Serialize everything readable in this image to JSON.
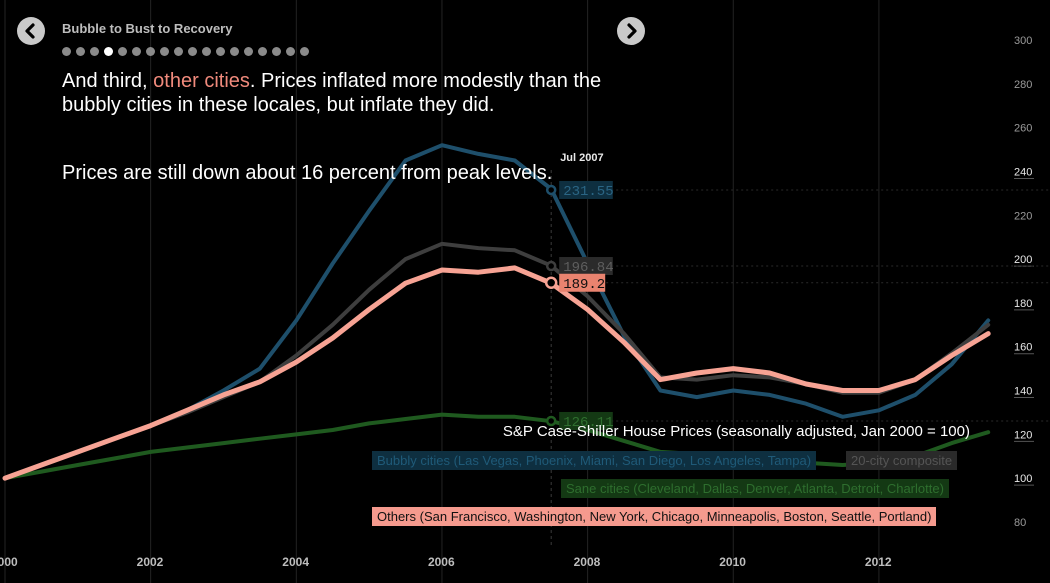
{
  "header": {
    "step_title": "Bubble to Bust to Recovery",
    "step_count": 18,
    "active_step": 3,
    "narrative_intro": "And third, ",
    "narrative_highlight": "other cities",
    "narrative_rest": ". Prices inflated more modestly than the bubbly cities in these locales, but inflate they did.",
    "narrative_2": "Prices are still down about 16 percent from peak levels."
  },
  "colors": {
    "background": "#000000",
    "bubbly": "#1e4f6b",
    "composite": "#3e3e3e",
    "sane": "#1f5a1f",
    "others": "#f7a394",
    "highlight": "#f08a7c"
  },
  "chart_data": {
    "type": "line",
    "title": "S&P Case-Shiller House Prices (seasonally adjusted, Jan 2000 = 100)",
    "xlim": [
      2000,
      2013.8
    ],
    "ylim": [
      80,
      300
    ],
    "x_ticks": [
      "2000",
      "2002",
      "2004",
      "2006",
      "2008",
      "2010",
      "2012"
    ],
    "y_ticks": [
      80,
      100,
      120,
      140,
      160,
      180,
      200,
      220,
      240,
      260,
      280,
      300
    ],
    "highlighted_y_ticks": [
      100,
      120,
      140,
      160,
      180,
      200,
      240
    ],
    "marker": {
      "x": 2007.5,
      "label": "Jul 2007",
      "values": [
        "231.55",
        "196.84",
        "189.2",
        "126.11"
      ]
    },
    "series": [
      {
        "name": "Bubbly cities (Las Vegas, Phoenix, Miami, San Diego, Los Angeles, Tampa)",
        "x": [
          2000,
          2000.5,
          2001,
          2001.5,
          2002,
          2002.5,
          2003,
          2003.5,
          2004,
          2004.5,
          2005,
          2005.5,
          2006,
          2006.5,
          2007,
          2007.5,
          2008,
          2008.5,
          2009,
          2009.5,
          2010,
          2010.5,
          2011,
          2011.5,
          2012,
          2012.5,
          2013,
          2013.5
        ],
        "y": [
          100,
          106,
          112,
          118,
          124,
          131,
          140,
          150,
          172,
          198,
          222,
          245,
          252,
          248,
          245,
          232,
          198,
          165,
          140,
          137,
          140,
          138,
          134,
          128,
          131,
          138,
          152,
          172
        ]
      },
      {
        "name": "20-city composite",
        "x": [
          2000,
          2000.5,
          2001,
          2001.5,
          2002,
          2002.5,
          2003,
          2003.5,
          2004,
          2004.5,
          2005,
          2005.5,
          2006,
          2006.5,
          2007,
          2007.5,
          2008,
          2008.5,
          2009,
          2009.5,
          2010,
          2010.5,
          2011,
          2011.5,
          2012,
          2012.5,
          2013,
          2013.5
        ],
        "y": [
          100,
          106,
          112,
          118,
          124,
          130,
          137,
          144,
          156,
          170,
          186,
          200,
          207,
          205,
          204,
          197,
          183,
          166,
          146,
          145,
          147,
          146,
          143,
          139,
          139,
          145,
          157,
          170
        ]
      },
      {
        "name": "Sane cities (Cleveland, Dallas, Denver, Atlanta, Detroit, Charlotte)",
        "x": [
          2000,
          2000.5,
          2001,
          2001.5,
          2002,
          2002.5,
          2003,
          2003.5,
          2004,
          2004.5,
          2005,
          2005.5,
          2006,
          2006.5,
          2007,
          2007.5,
          2008,
          2008.5,
          2009,
          2009.5,
          2010,
          2010.5,
          2011,
          2011.5,
          2012,
          2012.5,
          2013,
          2013.5
        ],
        "y": [
          100,
          103,
          106,
          109,
          112,
          114,
          116,
          118,
          120,
          122,
          125,
          127,
          129,
          128,
          128,
          126,
          122,
          117,
          112,
          111,
          111,
          110,
          107,
          106,
          107,
          110,
          116,
          121
        ]
      },
      {
        "name": "Others (San Francisco, Washington, New York, Chicago, Minneapolis, Boston, Seattle, Portland)",
        "x": [
          2000,
          2000.5,
          2001,
          2001.5,
          2002,
          2002.5,
          2003,
          2003.5,
          2004,
          2004.5,
          2005,
          2005.5,
          2006,
          2006.5,
          2007,
          2007.5,
          2008,
          2008.5,
          2009,
          2009.5,
          2010,
          2010.5,
          2011,
          2011.5,
          2012,
          2012.5,
          2013,
          2013.5
        ],
        "y": [
          100,
          106,
          112,
          118,
          124,
          131,
          138,
          144,
          153,
          164,
          177,
          189,
          195,
          194,
          196,
          189,
          177,
          162,
          145,
          148,
          150,
          148,
          143,
          140,
          140,
          145,
          156,
          166
        ]
      }
    ]
  }
}
